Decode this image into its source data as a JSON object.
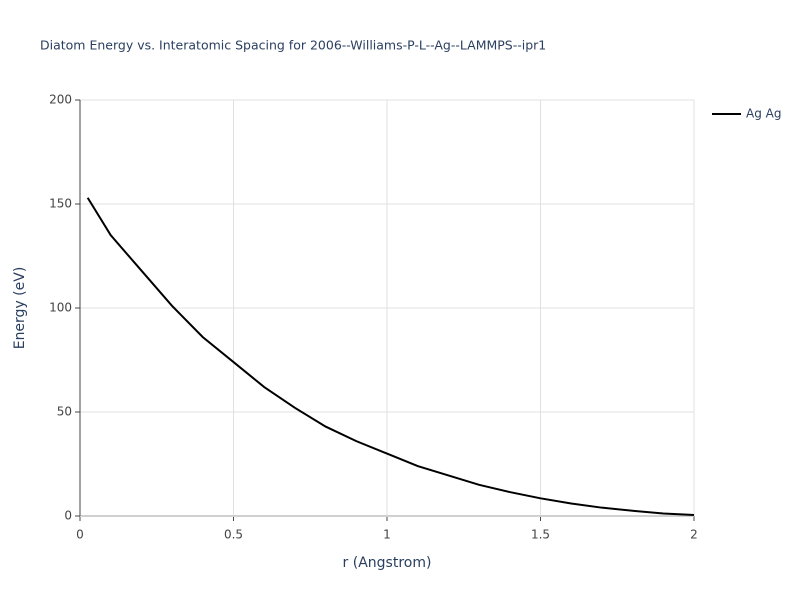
{
  "chart_data": {
    "type": "line",
    "title": "Diatom Energy vs. Interatomic Spacing for 2006--Williams-P-L--Ag--LAMMPS--ipr1",
    "x_label": "r (Angstrom)",
    "y_label": "Energy (eV)",
    "x": [
      0.025,
      0.1,
      0.2,
      0.3,
      0.4,
      0.5,
      0.6,
      0.7,
      0.8,
      0.9,
      1.0,
      1.1,
      1.2,
      1.3,
      1.4,
      1.5,
      1.6,
      1.7,
      1.8,
      1.9,
      2.0
    ],
    "series": [
      {
        "name": "Ag Ag",
        "color": "#000000",
        "values": [
          153,
          135,
          118,
          101,
          86,
          74,
          62,
          52,
          43,
          36,
          30,
          24,
          19.5,
          15,
          11.5,
          8.5,
          6,
          4,
          2.5,
          1.2,
          0.5
        ]
      }
    ],
    "xlim": [
      0,
      2
    ],
    "xticks": [
      0,
      0.5,
      1,
      1.5,
      2
    ],
    "ylim": [
      0,
      200
    ],
    "yticks": [
      0,
      50,
      100,
      150,
      200
    ],
    "grid": true,
    "legend": "right"
  }
}
